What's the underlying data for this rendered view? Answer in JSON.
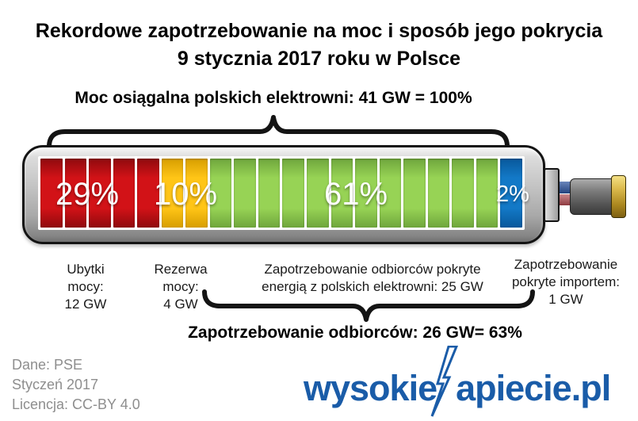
{
  "title": {
    "line1": "Rekordowe zapotrzebowanie na moc i sposób jego pokrycia",
    "line2": "9 stycznia 2017 roku w Polsce"
  },
  "capacity_label": "Moc osiągalna polskich elektrowni: 41 GW = 100%",
  "demand_label": "Zapotrzebowanie odbiorców: 26 GW= 63%",
  "chart_data": {
    "type": "bar",
    "variant": "battery-stacked-percentage",
    "title": "Rekordowe zapotrzebowanie na moc i sposób jego pokrycia 9 stycznia 2017 roku w Polsce",
    "total": {
      "label": "Moc osiągalna polskich elektrowni",
      "value_gw": 41,
      "percent": 100
    },
    "segments": [
      {
        "name": "Ubytki mocy",
        "value_gw": 12,
        "percent": 29,
        "label": "29%",
        "cells": 5,
        "color_name": "red",
        "color": "#C00000",
        "color_bright": "#D21217",
        "color_dark": "#8F0A0E"
      },
      {
        "name": "Rezerwa mocy",
        "value_gw": 4,
        "percent": 10,
        "label": "10%",
        "cells": 2,
        "color_name": "yellow",
        "color": "#FFC000",
        "color_bright": "#FFC517",
        "color_dark": "#D79E00"
      },
      {
        "name": "Zapotrzebowanie odbiorców pokryte energią z polskich elektrowni",
        "value_gw": 25,
        "percent": 61,
        "label": "61%",
        "cells": 12,
        "color_name": "green",
        "color": "#92D050",
        "color_bright": "#97D355",
        "color_dark": "#6FA63C"
      },
      {
        "name": "Zapotrzebowanie pokryte importem",
        "value_gw": 1,
        "percent": 2,
        "label": "2%",
        "cells": 1,
        "color_name": "blue",
        "color": "#0070C0",
        "color_bright": "#1379C7",
        "color_dark": "#08589B"
      }
    ],
    "demand_total": {
      "label": "Zapotrzebowanie odbiorców",
      "value_gw": 26,
      "percent": 63
    }
  },
  "below_labels": {
    "ubytki": {
      "l1": "Ubytki",
      "l2": "mocy:",
      "l3": "12 GW"
    },
    "rezerwa": {
      "l1": "Rezerwa",
      "l2": "mocy:",
      "l3": "4 GW"
    },
    "krajowe": {
      "l1": "Zapotrzebowanie odbiorców pokryte",
      "l2": "energią z polskich elektrowni: 25 GW"
    },
    "import": {
      "l1": "Zapotrzebowanie",
      "l2": "pokryte importem:",
      "l3": "1 GW"
    }
  },
  "credits": {
    "line1": "Dane: PSE",
    "line2": "Styczeń 2017",
    "line3": "Licencja: CC-BY 4.0"
  },
  "logo": {
    "part1": "wysokie",
    "part2": "apiecie.pl"
  },
  "colors": {
    "logo_blue": "#1A5CA8",
    "credits_gray": "#8E8E8E",
    "battery_case": "#C3C3C3",
    "brace_black": "#141414"
  }
}
